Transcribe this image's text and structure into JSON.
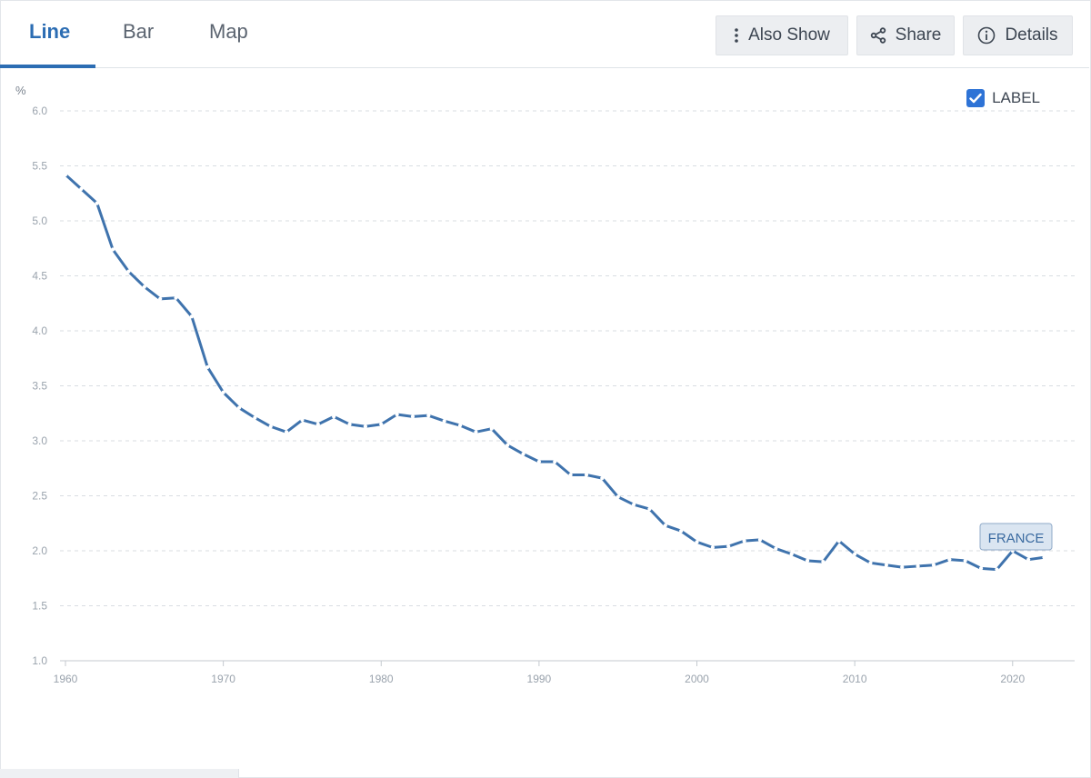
{
  "tabs": [
    {
      "label": "Line"
    },
    {
      "label": "Bar"
    },
    {
      "label": "Map"
    }
  ],
  "toolbar": {
    "also_show_label": "Also Show",
    "share_label": "Share",
    "details_label": "Details"
  },
  "label_toggle": {
    "text": "LABEL",
    "checked": true
  },
  "colors": {
    "accent": "#2c6db3",
    "series": "#3f73ad"
  },
  "chart_data": {
    "type": "line",
    "title": "",
    "xlabel": "",
    "ylabel": "%",
    "ylim": [
      1.0,
      6.0
    ],
    "xlim": [
      1960,
      2023
    ],
    "yticks": [
      "1.0",
      "1.5",
      "2.0",
      "2.5",
      "3.0",
      "3.5",
      "4.0",
      "4.5",
      "5.0",
      "5.5",
      "6.0"
    ],
    "xticks": [
      "1960",
      "1970",
      "1980",
      "1990",
      "2000",
      "2010",
      "2020"
    ],
    "grid": true,
    "series": [
      {
        "name": "FRANCE",
        "x": [
          1960,
          1961,
          1962,
          1963,
          1964,
          1965,
          1966,
          1967,
          1968,
          1969,
          1970,
          1971,
          1972,
          1973,
          1974,
          1975,
          1976,
          1977,
          1978,
          1979,
          1980,
          1981,
          1982,
          1983,
          1984,
          1985,
          1986,
          1987,
          1988,
          1989,
          1990,
          1991,
          1992,
          1993,
          1994,
          1995,
          1996,
          1997,
          1998,
          1999,
          2000,
          2001,
          2002,
          2003,
          2004,
          2005,
          2006,
          2007,
          2008,
          2009,
          2010,
          2011,
          2012,
          2013,
          2014,
          2015,
          2016,
          2017,
          2018,
          2019,
          2020,
          2021,
          2022
        ],
        "values": [
          5.42,
          5.29,
          5.16,
          4.74,
          4.54,
          4.4,
          4.29,
          4.3,
          4.13,
          3.67,
          3.44,
          3.3,
          3.21,
          3.13,
          3.08,
          3.19,
          3.15,
          3.22,
          3.15,
          3.13,
          3.15,
          3.24,
          3.22,
          3.23,
          3.18,
          3.14,
          3.08,
          3.11,
          2.96,
          2.88,
          2.81,
          2.81,
          2.69,
          2.69,
          2.66,
          2.49,
          2.42,
          2.38,
          2.23,
          2.18,
          2.08,
          2.03,
          2.04,
          2.09,
          2.1,
          2.02,
          1.97,
          1.91,
          1.9,
          2.09,
          1.97,
          1.89,
          1.87,
          1.85,
          1.86,
          1.87,
          1.92,
          1.91,
          1.84,
          1.83,
          2.0,
          1.92,
          1.94
        ]
      }
    ]
  }
}
